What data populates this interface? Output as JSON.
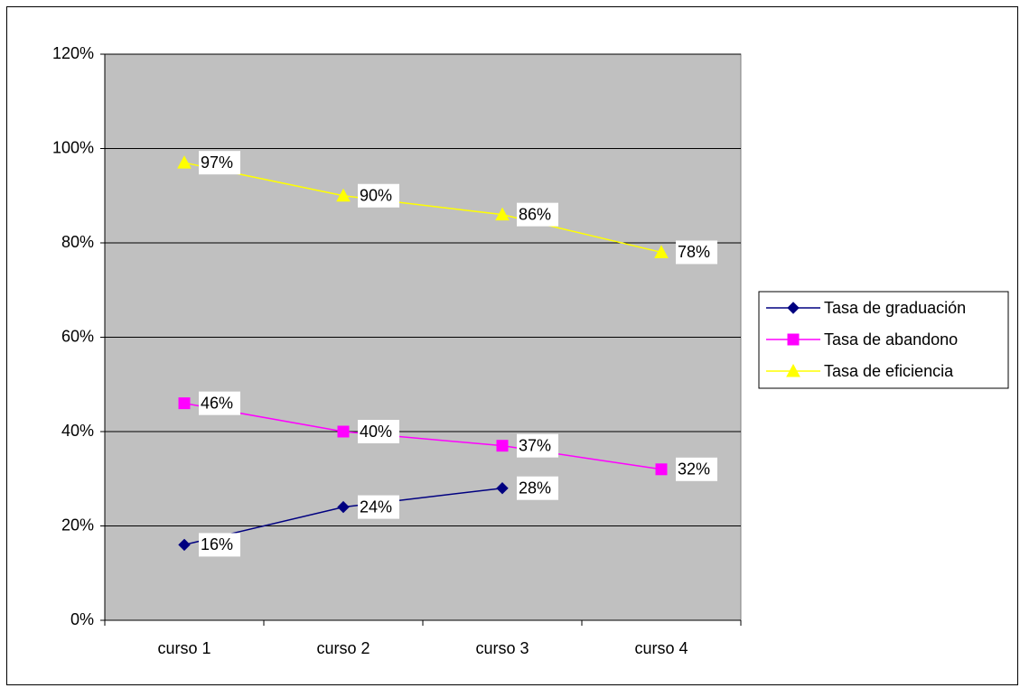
{
  "chart_data": {
    "type": "line",
    "categories": [
      "curso 1",
      "curso 2",
      "curso 3",
      "curso 4"
    ],
    "series": [
      {
        "name": "Tasa de graduación",
        "color": "#000080",
        "marker": "diamond",
        "values": [
          16,
          24,
          28,
          null
        ],
        "value_labels": [
          "16%",
          "24%",
          "28%",
          null
        ]
      },
      {
        "name": "Tasa de abandono",
        "color": "#ff00ff",
        "marker": "square",
        "values": [
          46,
          40,
          37,
          32
        ],
        "value_labels": [
          "46%",
          "40%",
          "37%",
          "32%"
        ]
      },
      {
        "name": "Tasa de eficiencia",
        "color": "#ffff00",
        "marker": "triangle",
        "values": [
          97,
          90,
          86,
          78
        ],
        "value_labels": [
          "97%",
          "90%",
          "86%",
          "78%"
        ]
      }
    ],
    "ylim": [
      0,
      120
    ],
    "yticks": [
      {
        "value": 0,
        "label": "0%"
      },
      {
        "value": 20,
        "label": "20%"
      },
      {
        "value": 40,
        "label": "40%"
      },
      {
        "value": 60,
        "label": "60%"
      },
      {
        "value": 80,
        "label": "80%"
      },
      {
        "value": 100,
        "label": "100%"
      },
      {
        "value": 120,
        "label": "120%"
      }
    ],
    "grid": true,
    "legend": "right"
  }
}
